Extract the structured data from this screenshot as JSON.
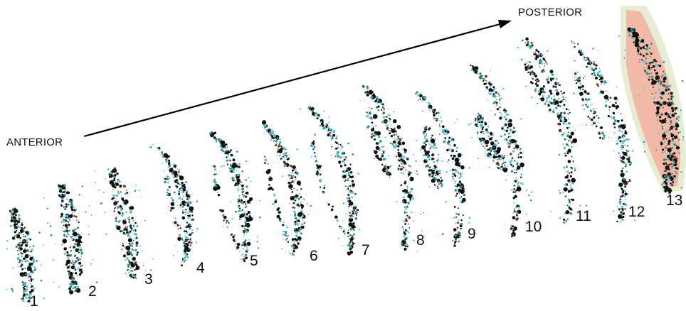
{
  "direction_labels": {
    "anterior": "ANTERIOR",
    "posterior": "POSTERIOR"
  },
  "sections": [
    {
      "number": "1"
    },
    {
      "number": "2"
    },
    {
      "number": "3"
    },
    {
      "number": "4"
    },
    {
      "number": "5"
    },
    {
      "number": "6"
    },
    {
      "number": "7"
    },
    {
      "number": "8"
    },
    {
      "number": "9"
    },
    {
      "number": "10"
    },
    {
      "number": "11"
    },
    {
      "number": "12"
    },
    {
      "number": "13"
    }
  ],
  "colors": {
    "dot_dark": "#111111",
    "dot_teal": "#2a8f8a",
    "dot_cyan": "#5fc2d6",
    "dot_brown": "#6b3a1e",
    "section13_outer": "#e7edd2",
    "section13_inner": "#f2b9a8",
    "arrow": "#000000"
  }
}
